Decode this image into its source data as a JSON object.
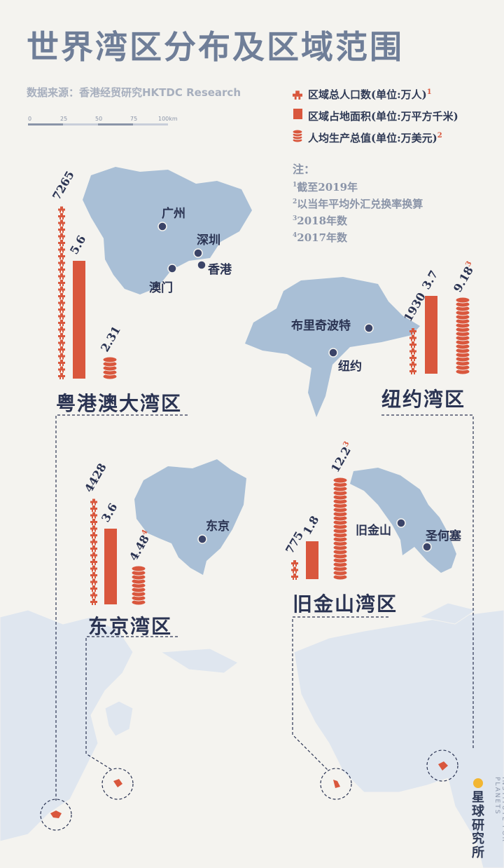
{
  "title": "世界湾区分布及区域范围",
  "source": "数据来源：香港经贸研究HKTDC Research",
  "scale": {
    "labels": [
      "0",
      "25",
      "50",
      "75",
      "100km"
    ]
  },
  "legend": [
    {
      "icon": "person-icon",
      "label": "区域总人口数(单位:万人)",
      "note": "1"
    },
    {
      "icon": "square-icon",
      "label": "区域占地面积(单位:万平方千米)",
      "note": ""
    },
    {
      "icon": "coin-stack-icon",
      "label": "人均生产总值(单位:万美元)",
      "note": "2"
    }
  ],
  "notes": {
    "title": "注：",
    "items": [
      {
        "mark": "1",
        "text": "截至2019年"
      },
      {
        "mark": "2",
        "text": "以当年平均外汇兑换率换算"
      },
      {
        "mark": "3",
        "text": "2018年数"
      },
      {
        "mark": "4",
        "text": "2017年数"
      }
    ]
  },
  "colors": {
    "accent": "#d9573d",
    "map": "#a9bfd6",
    "title": "#6f7e98",
    "dark": "#2a3352"
  },
  "regions": {
    "gba": {
      "name": "粤港澳大湾区",
      "cities": [
        "广州",
        "深圳",
        "香港",
        "澳门"
      ]
    },
    "ny": {
      "name": "纽约湾区",
      "cities": [
        "布里奇波特",
        "纽约"
      ]
    },
    "tokyo": {
      "name": "东京湾区",
      "cities": [
        "东京"
      ]
    },
    "sf": {
      "name": "旧金山湾区",
      "cities": [
        "旧金山",
        "圣何塞"
      ]
    }
  },
  "chart_data": {
    "type": "bar",
    "categories": [
      "粤港澳大湾区",
      "纽约湾区",
      "东京湾区",
      "旧金山湾区"
    ],
    "series": [
      {
        "name": "区域总人口数(单位:万人)",
        "values": [
          7265,
          1930,
          4428,
          775
        ],
        "labels": [
          "7265",
          "1930",
          "4428",
          "775"
        ]
      },
      {
        "name": "区域占地面积(单位:万平方千米)",
        "values": [
          5.6,
          3.7,
          3.6,
          1.8
        ],
        "labels": [
          "5.6",
          "3.7",
          "3.6",
          "1.8"
        ]
      },
      {
        "name": "人均生产总值(单位:万美元)",
        "values": [
          2.31,
          9.18,
          4.48,
          12.2
        ],
        "labels": [
          "2.31",
          "9.18",
          "4.48",
          "12.2"
        ],
        "notes": [
          "",
          "3",
          "4",
          "3"
        ]
      }
    ]
  },
  "logo": {
    "name": "星球研究所",
    "sub": "INSTITUTE FOR PLANETS"
  }
}
